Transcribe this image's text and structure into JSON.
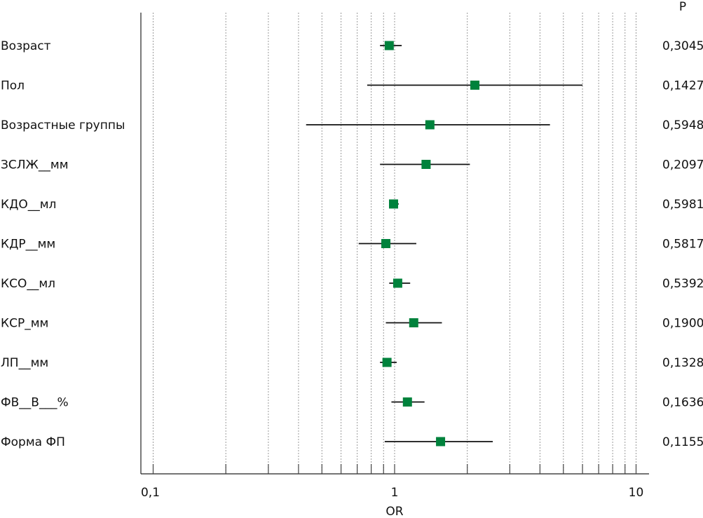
{
  "chart_data": {
    "type": "forest",
    "x_scale": "log",
    "xlim": [
      0.1,
      10
    ],
    "xlabel": "OR",
    "p_header": "P",
    "x_ticks": [
      "0,1",
      "1",
      "10"
    ],
    "gridlines": [
      0.1,
      0.2,
      0.3,
      0.4,
      0.5,
      0.6,
      0.7,
      0.8,
      0.9,
      1,
      2,
      3,
      4,
      5,
      6,
      7,
      8,
      9,
      10
    ],
    "grid": true,
    "marker_color": "#00823c",
    "rows": [
      {
        "label": "Возраст",
        "or": 0.95,
        "lo": 0.87,
        "hi": 1.07,
        "p": "0,3045"
      },
      {
        "label": "Пол",
        "or": 2.15,
        "lo": 0.77,
        "hi": 6.0,
        "p": "0,1427"
      },
      {
        "label": "Возрастные группы",
        "or": 1.4,
        "lo": 0.43,
        "hi": 4.4,
        "p": "0,5948"
      },
      {
        "label": "ЗСЛЖ__мм",
        "or": 1.35,
        "lo": 0.87,
        "hi": 2.05,
        "p": "0,2097"
      },
      {
        "label": "КДО__мл",
        "or": 0.99,
        "lo": 0.96,
        "hi": 1.04,
        "p": "0,5981"
      },
      {
        "label": "КДР__мм",
        "or": 0.92,
        "lo": 0.71,
        "hi": 1.23,
        "p": "0,5817"
      },
      {
        "label": "КСО__мл",
        "or": 1.03,
        "lo": 0.95,
        "hi": 1.16,
        "p": "0,5392"
      },
      {
        "label": "КСР_мм",
        "or": 1.2,
        "lo": 0.92,
        "hi": 1.57,
        "p": "0,1900"
      },
      {
        "label": "ЛП__мм",
        "or": 0.93,
        "lo": 0.87,
        "hi": 1.02,
        "p": "0,1328"
      },
      {
        "label": "ФВ__В___%",
        "or": 1.13,
        "lo": 0.97,
        "hi": 1.33,
        "p": "0,1636"
      },
      {
        "label": "Форма ФП",
        "or": 1.55,
        "lo": 0.91,
        "hi": 2.55,
        "p": "0,1155"
      }
    ]
  }
}
